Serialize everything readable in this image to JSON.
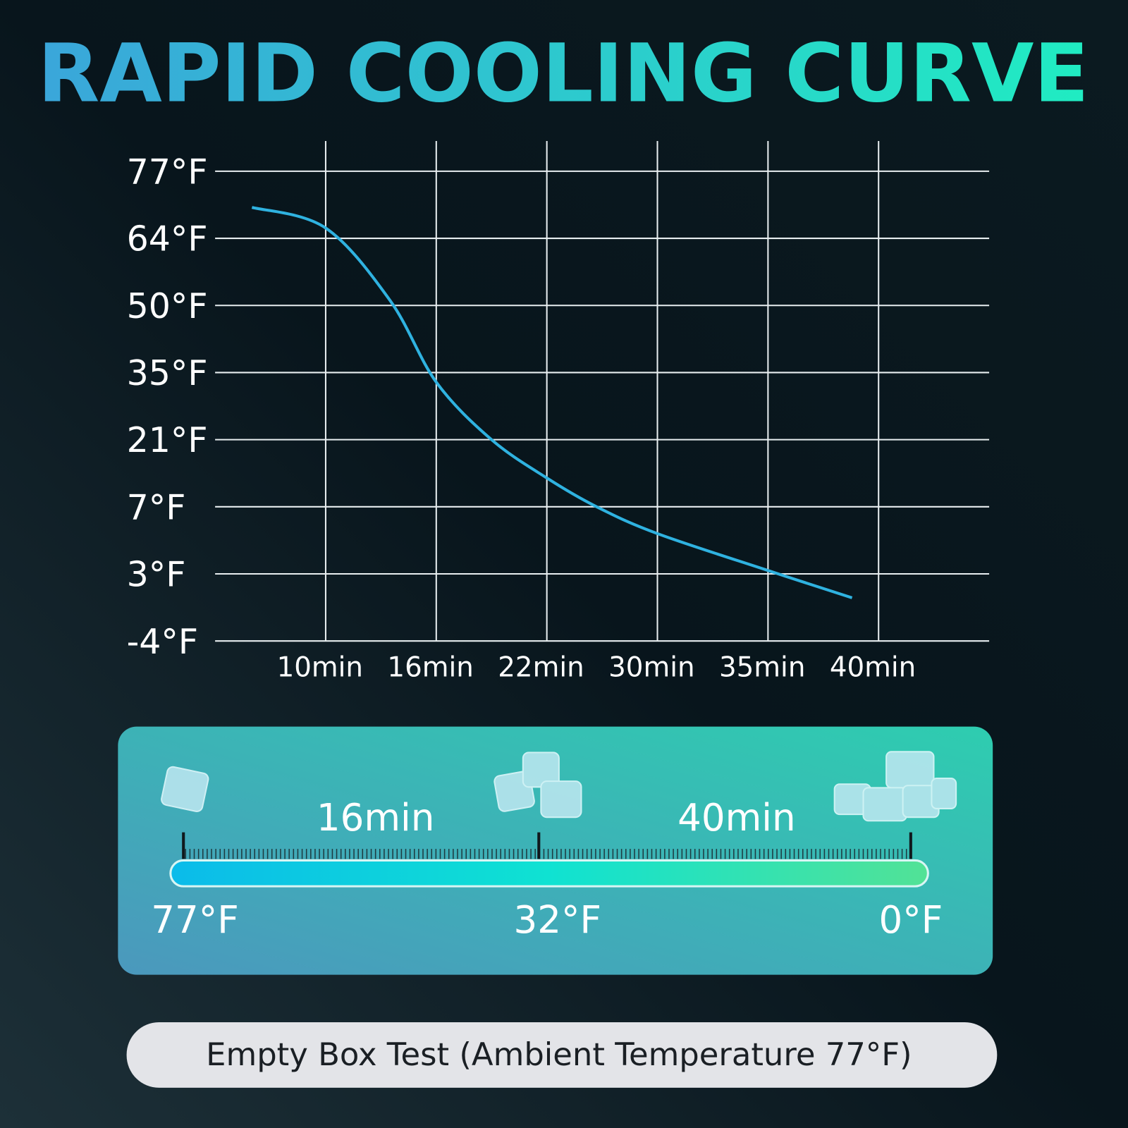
{
  "chart_data": {
    "type": "line",
    "title": "RAPID COOLING CURVE",
    "x": [
      6,
      10,
      13.5,
      16,
      19,
      22,
      25.6,
      30,
      35,
      38.8
    ],
    "series": [
      {
        "color": "#2fb2e0",
        "values": [
          70,
          66,
          51,
          33,
          21,
          13,
          7,
          5.4,
          3.2,
          0.5
        ]
      }
    ],
    "xlim": [
      4,
      45
    ],
    "xticks": [
      {
        "value": 10,
        "label": "10min"
      },
      {
        "value": 16,
        "label": "16min"
      },
      {
        "value": 22,
        "label": "22min"
      },
      {
        "value": 30,
        "label": "30min"
      },
      {
        "value": 35,
        "label": "35min"
      },
      {
        "value": 40,
        "label": "40min"
      }
    ],
    "ylim": [
      -4,
      77
    ],
    "yticks": [
      {
        "value": 77,
        "label": "77°F"
      },
      {
        "value": 64,
        "label": "64°F"
      },
      {
        "value": 50,
        "label": "50°F"
      },
      {
        "value": 35,
        "label": "35°F"
      },
      {
        "value": 21,
        "label": "21°F"
      },
      {
        "value": 7,
        "label": "7°F"
      },
      {
        "value": 3,
        "label": "3°F"
      },
      {
        "value": -4,
        "label": "-4°F"
      }
    ],
    "grid": true
  },
  "scale_bar": {
    "times": [
      "16min",
      "40min"
    ],
    "temperatures": [
      "77°F",
      "32°F",
      "0°F"
    ]
  },
  "footer": "Empty Box Test (Ambient Temperature 77°F)"
}
